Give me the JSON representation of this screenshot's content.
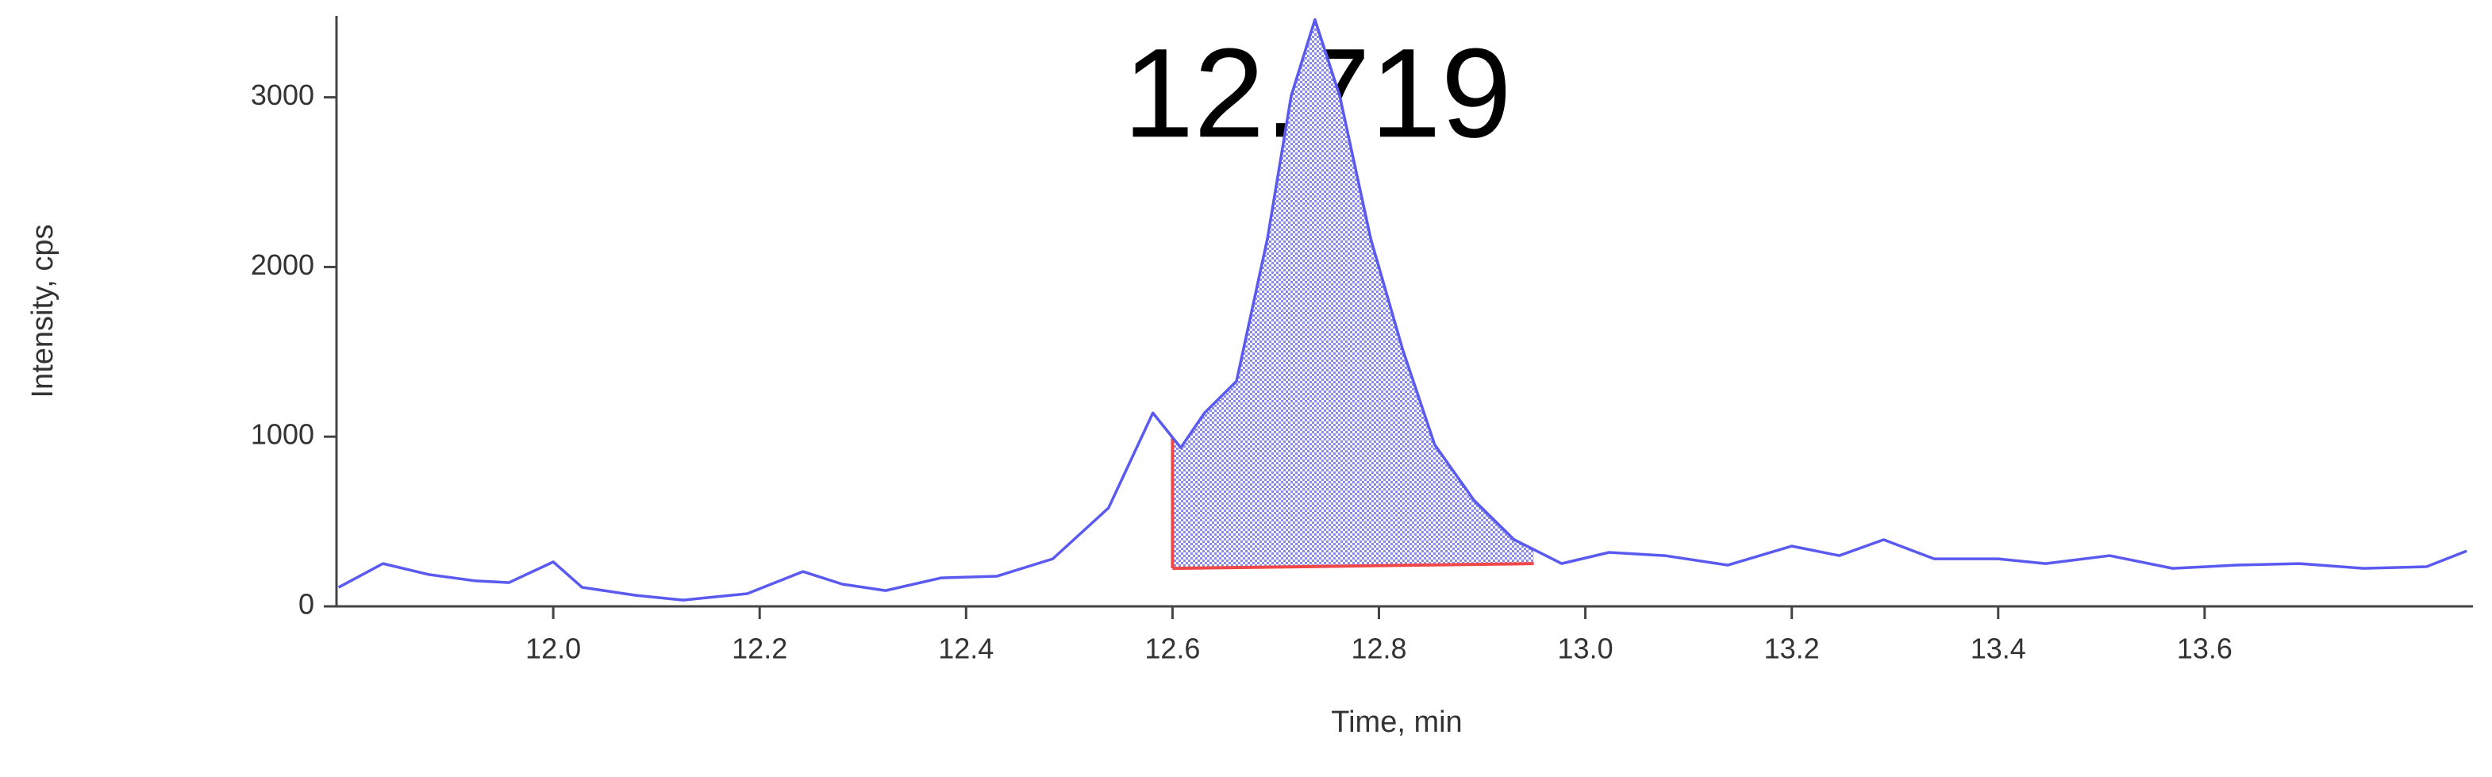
{
  "chart_data": {
    "type": "line",
    "annotation": "12.719",
    "x_label": "Time, min",
    "y_label": "Intensity, cps",
    "x": [
      11.792,
      11.835,
      11.88,
      11.925,
      11.957,
      12.0,
      12.028,
      12.08,
      12.126,
      12.188,
      12.242,
      12.28,
      12.322,
      12.376,
      12.43,
      12.484,
      12.538,
      12.581,
      12.608,
      12.631,
      12.662,
      12.692,
      12.715,
      12.738,
      12.762,
      12.792,
      12.823,
      12.854,
      12.892,
      12.931,
      12.977,
      13.023,
      13.077,
      13.138,
      13.2,
      13.246,
      13.289,
      13.338,
      13.4,
      13.446,
      13.508,
      13.569,
      13.631,
      13.692,
      13.754,
      13.815,
      13.854
    ],
    "series": [
      {
        "color": "#5a5af0",
        "values": [
          112,
          252,
          187,
          150,
          140,
          262,
          112,
          65,
          37,
          75,
          205,
          131,
          93,
          168,
          178,
          280,
          580,
          1140,
          935,
          1140,
          1327,
          2168,
          3009,
          3458,
          3009,
          2168,
          1514,
          953,
          626,
          393,
          252,
          318,
          299,
          243,
          355,
          299,
          393,
          280,
          280,
          252,
          299,
          224,
          243,
          252,
          224,
          234,
          327
        ]
      }
    ],
    "integration": {
      "start": 12.6,
      "end": 12.95,
      "baseline": [
        224,
        252
      ],
      "color": "#f04848",
      "fill": "#6a6ae8"
    },
    "xlim": [
      11.79,
      13.86
    ],
    "ylim": [
      0,
      3480
    ],
    "xticks": [
      {
        "value": 12,
        "label": "12.0"
      },
      12.2,
      12.4,
      12.6,
      12.8,
      {
        "value": 13,
        "label": "13.0"
      },
      13.2,
      13.4,
      13.6
    ],
    "yticks": [
      0,
      1000,
      2000,
      3000
    ]
  }
}
